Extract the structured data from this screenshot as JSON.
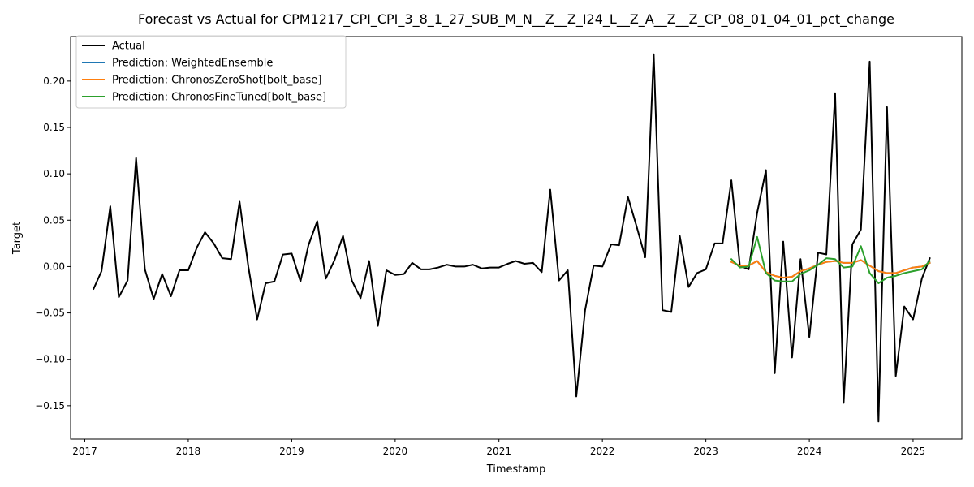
{
  "chart_data": {
    "type": "line",
    "title": "Forecast vs Actual for CPM1217_CPI_CPI_3_8_1_27_SUB_M_N__Z__Z_I24_L__Z_A__Z__Z_CP_08_01_04_01_pct_change",
    "xlabel": "Timestamp",
    "ylabel": "Target",
    "xlim": [
      "2016-11-12",
      "2025-06-22"
    ],
    "ylim": [
      -0.186,
      0.248
    ],
    "x_ticks": [
      "2017",
      "2018",
      "2019",
      "2020",
      "2021",
      "2022",
      "2023",
      "2024",
      "2025"
    ],
    "y_ticks": [
      "−0.15",
      "−0.10",
      "−0.05",
      "0.00",
      "0.05",
      "0.10",
      "0.15",
      "0.20"
    ],
    "y_tick_values": [
      -0.15,
      -0.1,
      -0.05,
      0.0,
      0.05,
      0.1,
      0.15,
      0.2
    ],
    "grid": false,
    "legend_position": "top-left",
    "series": [
      {
        "name": "Actual",
        "color": "#000000",
        "x": [
          "2017-02-01",
          "2017-03-01",
          "2017-04-01",
          "2017-05-01",
          "2017-06-01",
          "2017-07-01",
          "2017-08-01",
          "2017-09-01",
          "2017-10-01",
          "2017-11-01",
          "2017-12-01",
          "2018-01-01",
          "2018-02-01",
          "2018-03-01",
          "2018-04-01",
          "2018-05-01",
          "2018-06-01",
          "2018-07-01",
          "2018-08-01",
          "2018-09-01",
          "2018-10-01",
          "2018-11-01",
          "2018-12-01",
          "2019-01-01",
          "2019-02-01",
          "2019-03-01",
          "2019-04-01",
          "2019-05-01",
          "2019-06-01",
          "2019-07-01",
          "2019-08-01",
          "2019-09-01",
          "2019-10-01",
          "2019-11-01",
          "2019-12-01",
          "2020-01-01",
          "2020-02-01",
          "2020-03-01",
          "2020-04-01",
          "2020-05-01",
          "2020-06-01",
          "2020-07-01",
          "2020-08-01",
          "2020-09-01",
          "2020-10-01",
          "2020-11-01",
          "2020-12-01",
          "2021-01-01",
          "2021-02-01",
          "2021-03-01",
          "2021-04-01",
          "2021-05-01",
          "2021-06-01",
          "2021-07-01",
          "2021-08-01",
          "2021-09-01",
          "2021-10-01",
          "2021-11-01",
          "2021-12-01",
          "2022-01-01",
          "2022-02-01",
          "2022-03-01",
          "2022-04-01",
          "2022-05-01",
          "2022-06-01",
          "2022-07-01",
          "2022-08-01",
          "2022-09-01",
          "2022-10-01",
          "2022-11-01",
          "2022-12-01",
          "2023-01-01",
          "2023-02-01",
          "2023-03-01",
          "2023-04-01",
          "2023-05-01",
          "2023-06-01",
          "2023-07-01",
          "2023-08-01",
          "2023-09-01",
          "2023-10-01",
          "2023-11-01",
          "2023-12-01",
          "2024-01-01",
          "2024-02-01",
          "2024-03-01",
          "2024-04-01",
          "2024-05-01",
          "2024-06-01",
          "2024-07-01",
          "2024-08-01",
          "2024-09-01",
          "2024-10-01",
          "2024-11-01",
          "2024-12-01",
          "2025-01-01",
          "2025-02-01",
          "2025-03-01"
        ],
        "y": [
          -0.024,
          -0.005,
          0.065,
          -0.033,
          -0.015,
          0.117,
          -0.003,
          -0.035,
          -0.008,
          -0.032,
          -0.004,
          -0.004,
          0.021,
          0.037,
          0.025,
          0.009,
          0.008,
          0.07,
          0.0,
          -0.057,
          -0.018,
          -0.016,
          0.013,
          0.014,
          -0.016,
          0.023,
          0.049,
          -0.013,
          0.007,
          0.033,
          -0.015,
          -0.034,
          0.006,
          -0.064,
          -0.004,
          -0.009,
          -0.008,
          0.004,
          -0.003,
          -0.003,
          -0.001,
          0.002,
          0.0,
          0.0,
          0.002,
          -0.002,
          -0.001,
          -0.001,
          0.003,
          0.006,
          0.003,
          0.004,
          -0.006,
          0.083,
          -0.015,
          -0.004,
          -0.14,
          -0.047,
          0.001,
          0.0,
          0.024,
          0.023,
          0.075,
          0.044,
          0.01,
          0.229,
          -0.047,
          -0.049,
          0.033,
          -0.022,
          -0.007,
          -0.003,
          0.025,
          0.025,
          0.093,
          0.001,
          -0.003,
          0.058,
          0.104,
          -0.115,
          0.027,
          -0.098,
          0.008,
          -0.076,
          0.015,
          0.013,
          0.187,
          -0.147,
          0.024,
          0.04,
          0.221,
          -0.167,
          0.172,
          -0.118,
          -0.043,
          -0.057,
          -0.013,
          0.009
        ]
      },
      {
        "name": "Prediction: WeightedEnsemble",
        "color": "#1f77b4",
        "x": [
          "2023-04-01",
          "2023-05-01",
          "2023-06-01",
          "2023-07-01",
          "2023-08-01",
          "2023-09-01",
          "2023-10-01",
          "2023-11-01",
          "2023-12-01",
          "2024-01-01",
          "2024-02-01",
          "2024-03-01",
          "2024-04-01",
          "2024-05-01",
          "2024-06-01",
          "2024-07-01",
          "2024-08-01",
          "2024-09-01",
          "2024-10-01",
          "2024-11-01",
          "2024-12-01",
          "2025-01-01",
          "2025-02-01",
          "2025-03-01"
        ],
        "y": [
          0.005,
          0.001,
          0.001,
          0.006,
          -0.006,
          -0.01,
          -0.012,
          -0.011,
          -0.005,
          -0.002,
          0.002,
          0.005,
          0.006,
          0.004,
          0.004,
          0.007,
          0.001,
          -0.005,
          -0.007,
          -0.007,
          -0.004,
          -0.001,
          0.0,
          0.004
        ]
      },
      {
        "name": "Prediction: ChronosZeroShot[bolt_base]",
        "color": "#ff7f0e",
        "x": [
          "2023-04-01",
          "2023-05-01",
          "2023-06-01",
          "2023-07-01",
          "2023-08-01",
          "2023-09-01",
          "2023-10-01",
          "2023-11-01",
          "2023-12-01",
          "2024-01-01",
          "2024-02-01",
          "2024-03-01",
          "2024-04-01",
          "2024-05-01",
          "2024-06-01",
          "2024-07-01",
          "2024-08-01",
          "2024-09-01",
          "2024-10-01",
          "2024-11-01",
          "2024-12-01",
          "2025-01-01",
          "2025-02-01",
          "2025-03-01"
        ],
        "y": [
          0.005,
          0.001,
          0.001,
          0.006,
          -0.006,
          -0.01,
          -0.012,
          -0.011,
          -0.005,
          -0.002,
          0.002,
          0.005,
          0.006,
          0.004,
          0.004,
          0.007,
          0.001,
          -0.005,
          -0.007,
          -0.007,
          -0.004,
          -0.001,
          0.0,
          0.004
        ]
      },
      {
        "name": "Prediction: ChronosFineTuned[bolt_base]",
        "color": "#2ca02c",
        "x": [
          "2023-04-01",
          "2023-05-01",
          "2023-06-01",
          "2023-07-01",
          "2023-08-01",
          "2023-09-01",
          "2023-10-01",
          "2023-11-01",
          "2023-12-01",
          "2024-01-01",
          "2024-02-01",
          "2024-03-01",
          "2024-04-01",
          "2024-05-01",
          "2024-06-01",
          "2024-07-01",
          "2024-08-01",
          "2024-09-01",
          "2024-10-01",
          "2024-11-01",
          "2024-12-01",
          "2025-01-01",
          "2025-02-01",
          "2025-03-01"
        ],
        "y": [
          0.008,
          -0.001,
          0.0,
          0.032,
          -0.007,
          -0.015,
          -0.016,
          -0.016,
          -0.008,
          -0.004,
          0.002,
          0.009,
          0.008,
          -0.001,
          0.0,
          0.022,
          -0.007,
          -0.018,
          -0.012,
          -0.01,
          -0.007,
          -0.005,
          -0.003,
          0.006
        ]
      }
    ]
  }
}
